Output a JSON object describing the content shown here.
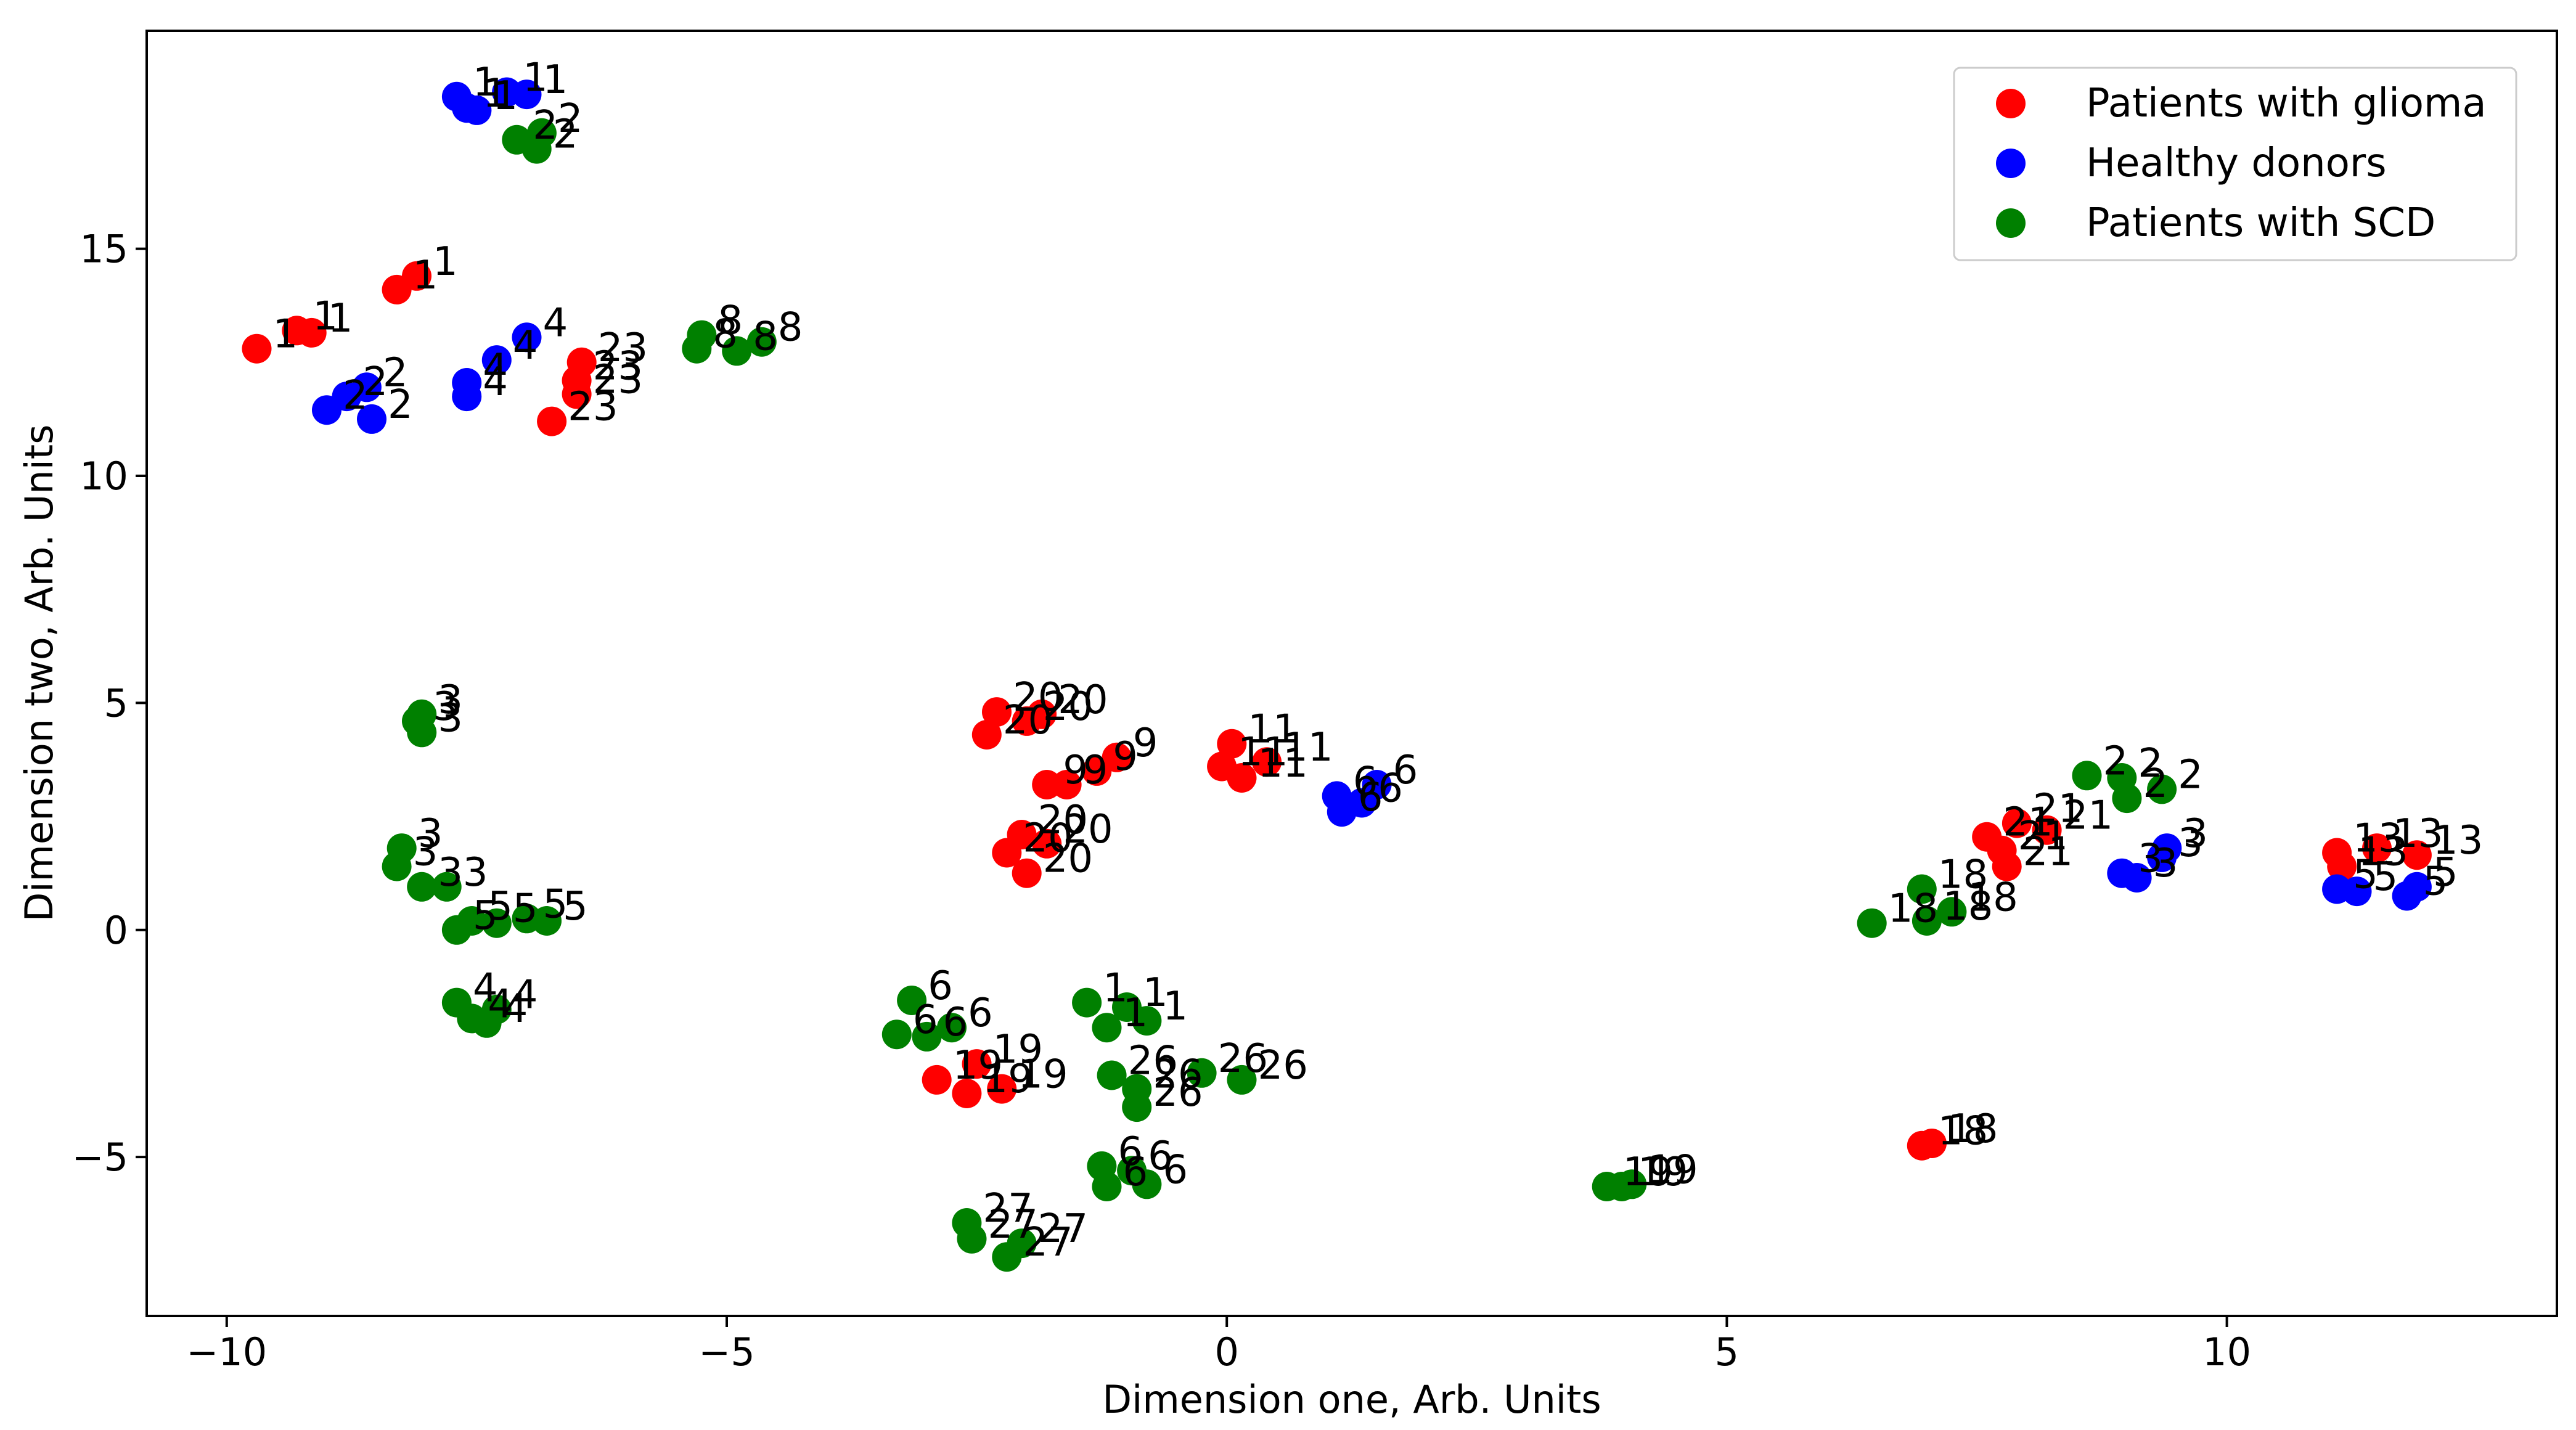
{
  "chart_data": {
    "type": "scatter",
    "title": "",
    "xlabel": "Dimension one, Arb. Units",
    "ylabel": "Dimension two, Arb. Units",
    "xlim": [
      -10.8,
      13.3
    ],
    "ylim": [
      -8.5,
      19.8
    ],
    "xticks": [
      -10,
      -5,
      0,
      5,
      10
    ],
    "yticks": [
      -5,
      0,
      5,
      10,
      15
    ],
    "xtick_labels": [
      "−10",
      "−5",
      "0",
      "5",
      "10"
    ],
    "ytick_labels": [
      "−5",
      "0",
      "5",
      "10",
      "15"
    ],
    "grid": false,
    "legend_position": "top-right",
    "series": [
      {
        "name": "Patients with glioma",
        "color": "#ff0000",
        "points": [
          {
            "x": -9.7,
            "y": 12.8,
            "label": "1"
          },
          {
            "x": -9.3,
            "y": 13.2,
            "label": "1"
          },
          {
            "x": -9.15,
            "y": 13.15,
            "label": "1"
          },
          {
            "x": -8.3,
            "y": 14.1,
            "label": "1"
          },
          {
            "x": -8.1,
            "y": 14.4,
            "label": "1"
          },
          {
            "x": -6.5,
            "y": 12.1,
            "label": "23"
          },
          {
            "x": -6.45,
            "y": 12.5,
            "label": "23"
          },
          {
            "x": -6.5,
            "y": 11.8,
            "label": "23"
          },
          {
            "x": -6.75,
            "y": 11.2,
            "label": "23"
          },
          {
            "x": -2.4,
            "y": 4.3,
            "label": "20"
          },
          {
            "x": -2.3,
            "y": 4.8,
            "label": "20"
          },
          {
            "x": -2.0,
            "y": 4.6,
            "label": "20"
          },
          {
            "x": -1.85,
            "y": 4.75,
            "label": "20"
          },
          {
            "x": -1.8,
            "y": 3.2,
            "label": "9"
          },
          {
            "x": -1.6,
            "y": 3.2,
            "label": "9"
          },
          {
            "x": -1.3,
            "y": 3.5,
            "label": "9"
          },
          {
            "x": -1.1,
            "y": 3.8,
            "label": "9"
          },
          {
            "x": -2.2,
            "y": 1.7,
            "label": "20"
          },
          {
            "x": -2.05,
            "y": 2.1,
            "label": "20"
          },
          {
            "x": -2.0,
            "y": 1.25,
            "label": "20"
          },
          {
            "x": -1.8,
            "y": 1.9,
            "label": "20"
          },
          {
            "x": 0.05,
            "y": 4.1,
            "label": "11"
          },
          {
            "x": -0.05,
            "y": 3.6,
            "label": "11"
          },
          {
            "x": 0.15,
            "y": 3.35,
            "label": "11"
          },
          {
            "x": 0.4,
            "y": 3.7,
            "label": "11"
          },
          {
            "x": -2.9,
            "y": -3.3,
            "label": "19"
          },
          {
            "x": -2.6,
            "y": -3.6,
            "label": "19"
          },
          {
            "x": -2.5,
            "y": -2.95,
            "label": "19"
          },
          {
            "x": -2.25,
            "y": -3.5,
            "label": "19"
          },
          {
            "x": 7.6,
            "y": 2.05,
            "label": "21"
          },
          {
            "x": 7.75,
            "y": 1.75,
            "label": "21"
          },
          {
            "x": 7.8,
            "y": 1.4,
            "label": "21"
          },
          {
            "x": 8.2,
            "y": 2.2,
            "label": "21"
          },
          {
            "x": 7.9,
            "y": 2.35,
            "label": "21"
          },
          {
            "x": 6.95,
            "y": -4.75,
            "label": "18"
          },
          {
            "x": 7.05,
            "y": -4.7,
            "label": "18"
          },
          {
            "x": 11.1,
            "y": 1.7,
            "label": "13"
          },
          {
            "x": 11.15,
            "y": 1.4,
            "label": "13"
          },
          {
            "x": 11.5,
            "y": 1.8,
            "label": "13"
          },
          {
            "x": 11.9,
            "y": 1.65,
            "label": "13"
          }
        ]
      },
      {
        "name": "Healthy donors",
        "color": "#0000ff",
        "points": [
          {
            "x": -7.7,
            "y": 18.35,
            "label": "1"
          },
          {
            "x": -7.6,
            "y": 18.1,
            "label": "1"
          },
          {
            "x": -7.5,
            "y": 18.05,
            "label": "1"
          },
          {
            "x": -7.2,
            "y": 18.45,
            "label": "1"
          },
          {
            "x": -7.0,
            "y": 18.4,
            "label": "1"
          },
          {
            "x": -9.0,
            "y": 11.45,
            "label": "2"
          },
          {
            "x": -8.8,
            "y": 11.75,
            "label": "2"
          },
          {
            "x": -8.6,
            "y": 11.95,
            "label": "2"
          },
          {
            "x": -8.55,
            "y": 11.25,
            "label": "2"
          },
          {
            "x": -7.6,
            "y": 12.05,
            "label": "4"
          },
          {
            "x": -7.6,
            "y": 11.75,
            "label": "4"
          },
          {
            "x": -7.3,
            "y": 12.55,
            "label": "4"
          },
          {
            "x": -7.0,
            "y": 13.05,
            "label": "4"
          },
          {
            "x": 1.1,
            "y": 2.95,
            "label": "6"
          },
          {
            "x": 1.15,
            "y": 2.6,
            "label": "6"
          },
          {
            "x": 1.35,
            "y": 2.8,
            "label": "6"
          },
          {
            "x": 1.5,
            "y": 3.2,
            "label": "6"
          },
          {
            "x": 8.95,
            "y": 1.25,
            "label": "3"
          },
          {
            "x": 9.1,
            "y": 1.15,
            "label": "3"
          },
          {
            "x": 9.35,
            "y": 1.6,
            "label": "3"
          },
          {
            "x": 9.4,
            "y": 1.8,
            "label": "3"
          },
          {
            "x": 11.1,
            "y": 0.9,
            "label": "5"
          },
          {
            "x": 11.3,
            "y": 0.85,
            "label": "5"
          },
          {
            "x": 11.8,
            "y": 0.75,
            "label": "5"
          },
          {
            "x": 11.9,
            "y": 0.95,
            "label": "5"
          }
        ]
      },
      {
        "name": "Patients with SCD",
        "color": "#008000",
        "points": [
          {
            "x": -7.1,
            "y": 17.4,
            "label": "2"
          },
          {
            "x": -6.9,
            "y": 17.2,
            "label": "2"
          },
          {
            "x": -6.85,
            "y": 17.55,
            "label": "2"
          },
          {
            "x": -5.3,
            "y": 12.8,
            "label": "8"
          },
          {
            "x": -5.25,
            "y": 13.1,
            "label": "8"
          },
          {
            "x": -4.9,
            "y": 12.75,
            "label": "8"
          },
          {
            "x": -4.65,
            "y": 12.95,
            "label": "8"
          },
          {
            "x": -8.1,
            "y": 4.6,
            "label": "3"
          },
          {
            "x": -8.05,
            "y": 4.35,
            "label": "3"
          },
          {
            "x": -8.05,
            "y": 4.75,
            "label": "3"
          },
          {
            "x": -8.25,
            "y": 1.8,
            "label": "3"
          },
          {
            "x": -8.3,
            "y": 1.4,
            "label": "3"
          },
          {
            "x": -8.05,
            "y": 0.95,
            "label": "3"
          },
          {
            "x": -7.8,
            "y": 0.95,
            "label": "3"
          },
          {
            "x": -7.7,
            "y": 0.0,
            "label": "5"
          },
          {
            "x": -7.55,
            "y": 0.2,
            "label": "5"
          },
          {
            "x": -7.3,
            "y": 0.15,
            "label": "5"
          },
          {
            "x": -7.0,
            "y": 0.25,
            "label": "5"
          },
          {
            "x": -6.8,
            "y": 0.2,
            "label": "5"
          },
          {
            "x": -7.7,
            "y": -1.6,
            "label": "4"
          },
          {
            "x": -7.55,
            "y": -1.95,
            "label": "4"
          },
          {
            "x": -7.4,
            "y": -2.05,
            "label": "4"
          },
          {
            "x": -7.3,
            "y": -1.75,
            "label": "4"
          },
          {
            "x": -3.3,
            "y": -2.3,
            "label": "6"
          },
          {
            "x": -3.15,
            "y": -1.55,
            "label": "6"
          },
          {
            "x": -3.0,
            "y": -2.35,
            "label": "6"
          },
          {
            "x": -2.75,
            "y": -2.15,
            "label": "6"
          },
          {
            "x": -1.4,
            "y": -1.6,
            "label": "1"
          },
          {
            "x": -1.2,
            "y": -2.15,
            "label": "1"
          },
          {
            "x": -1.0,
            "y": -1.7,
            "label": "1"
          },
          {
            "x": -0.8,
            "y": -2.0,
            "label": "1"
          },
          {
            "x": -1.15,
            "y": -3.2,
            "label": "26"
          },
          {
            "x": -0.9,
            "y": -3.5,
            "label": "26"
          },
          {
            "x": -0.9,
            "y": -3.9,
            "label": "26"
          },
          {
            "x": -0.25,
            "y": -3.15,
            "label": "26"
          },
          {
            "x": 0.15,
            "y": -3.3,
            "label": "26"
          },
          {
            "x": -1.25,
            "y": -5.2,
            "label": "6"
          },
          {
            "x": -1.2,
            "y": -5.65,
            "label": "6"
          },
          {
            "x": -0.95,
            "y": -5.3,
            "label": "6"
          },
          {
            "x": -0.8,
            "y": -5.6,
            "label": "6"
          },
          {
            "x": -2.6,
            "y": -6.45,
            "label": "27"
          },
          {
            "x": -2.55,
            "y": -6.8,
            "label": "27"
          },
          {
            "x": -2.2,
            "y": -7.2,
            "label": "27"
          },
          {
            "x": -2.05,
            "y": -6.9,
            "label": "27"
          },
          {
            "x": 3.8,
            "y": -5.65,
            "label": "19"
          },
          {
            "x": 3.95,
            "y": -5.65,
            "label": "19"
          },
          {
            "x": 4.05,
            "y": -5.6,
            "label": "19"
          },
          {
            "x": 6.45,
            "y": 0.15,
            "label": "18"
          },
          {
            "x": 6.95,
            "y": 0.9,
            "label": "18"
          },
          {
            "x": 7.0,
            "y": 0.2,
            "label": "18"
          },
          {
            "x": 7.25,
            "y": 0.4,
            "label": "18"
          },
          {
            "x": 8.6,
            "y": 3.4,
            "label": "2"
          },
          {
            "x": 8.95,
            "y": 3.35,
            "label": "2"
          },
          {
            "x": 9.0,
            "y": 2.9,
            "label": "2"
          },
          {
            "x": 9.35,
            "y": 3.1,
            "label": "2"
          }
        ]
      }
    ]
  }
}
